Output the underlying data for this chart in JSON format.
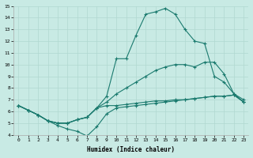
{
  "xlabel": "Humidex (Indice chaleur)",
  "bg_color": "#c8eae4",
  "line_color": "#1a7a6e",
  "grid_color": "#b0d8d0",
  "xlim": [
    -0.5,
    23.5
  ],
  "ylim": [
    4,
    15
  ],
  "xticks": [
    0,
    1,
    2,
    3,
    4,
    5,
    6,
    7,
    8,
    9,
    10,
    11,
    12,
    13,
    14,
    15,
    16,
    17,
    18,
    19,
    20,
    21,
    22,
    23
  ],
  "yticks": [
    4,
    5,
    6,
    7,
    8,
    9,
    10,
    11,
    12,
    13,
    14,
    15
  ],
  "line1_x": [
    0,
    1,
    2,
    3,
    4,
    5,
    6,
    7,
    8,
    9,
    10,
    11,
    12,
    13,
    14,
    15,
    16,
    17,
    18,
    19,
    20,
    21,
    22,
    23
  ],
  "line1_y": [
    6.5,
    6.1,
    5.7,
    5.2,
    4.8,
    4.5,
    4.3,
    3.9,
    4.7,
    5.8,
    6.3,
    6.4,
    6.5,
    6.6,
    6.7,
    6.8,
    6.9,
    7.0,
    7.1,
    7.2,
    7.3,
    7.3,
    7.4,
    6.8
  ],
  "line2_x": [
    0,
    1,
    2,
    3,
    4,
    5,
    6,
    7,
    8,
    9,
    10,
    11,
    12,
    13,
    14,
    15,
    16,
    17,
    18,
    19,
    20,
    21,
    22,
    23
  ],
  "line2_y": [
    6.5,
    6.1,
    5.7,
    5.2,
    5.0,
    5.0,
    5.3,
    5.5,
    6.3,
    7.3,
    10.5,
    10.5,
    12.5,
    14.3,
    14.5,
    14.8,
    14.3,
    13.0,
    12.0,
    11.8,
    9.0,
    8.5,
    7.5,
    6.8
  ],
  "line3_x": [
    0,
    1,
    2,
    3,
    4,
    5,
    6,
    7,
    8,
    9,
    10,
    11,
    12,
    13,
    14,
    15,
    16,
    17,
    18,
    19,
    20,
    21,
    22,
    23
  ],
  "line3_y": [
    6.5,
    6.1,
    5.7,
    5.2,
    5.0,
    5.0,
    5.3,
    5.5,
    6.3,
    6.8,
    7.5,
    8.0,
    8.5,
    9.0,
    9.5,
    9.8,
    10.0,
    10.0,
    9.8,
    10.2,
    10.2,
    9.2,
    7.5,
    7.0
  ],
  "line4_x": [
    0,
    1,
    2,
    3,
    4,
    5,
    6,
    7,
    8,
    9,
    10,
    11,
    12,
    13,
    14,
    15,
    16,
    17,
    18,
    19,
    20,
    21,
    22,
    23
  ],
  "line4_y": [
    6.5,
    6.1,
    5.7,
    5.2,
    5.0,
    5.0,
    5.3,
    5.5,
    6.3,
    6.5,
    6.5,
    6.6,
    6.7,
    6.8,
    6.9,
    6.9,
    7.0,
    7.0,
    7.1,
    7.2,
    7.3,
    7.3,
    7.4,
    6.8
  ]
}
